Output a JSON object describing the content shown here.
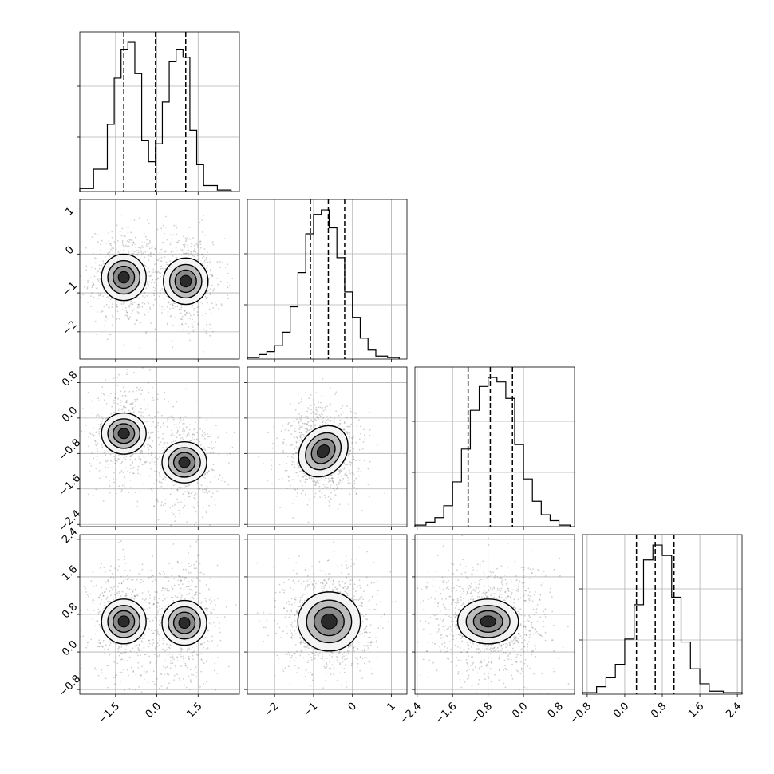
{
  "chart_data": {
    "type": "corner",
    "grid": true,
    "parameters": [
      {
        "range": [
          -2.8,
          3.0
        ],
        "ticks": [
          -1.5,
          0.0,
          1.5
        ],
        "tick_labels": [
          "−1.5",
          "0.0",
          "1.5"
        ]
      },
      {
        "range": [
          -2.7,
          1.4
        ],
        "ticks": [
          -2,
          -1,
          0,
          1
        ],
        "tick_labels": [
          "−2",
          "−1",
          "0",
          "1"
        ]
      },
      {
        "range": [
          -2.45,
          1.15
        ],
        "ticks": [
          -2.4,
          -1.6,
          -0.8,
          0.0,
          0.8
        ],
        "tick_labels": [
          "−2.4",
          "−1.6",
          "−0.8",
          "0.0",
          "0.8"
        ]
      },
      {
        "range": [
          -0.9,
          2.5
        ],
        "ticks": [
          -0.8,
          0.0,
          0.8,
          1.6,
          2.4
        ],
        "tick_labels": [
          "−0.8",
          "0.0",
          "0.8",
          "1.6",
          "2.4"
        ]
      }
    ],
    "histograms": [
      {
        "parameter": 0,
        "bin_edges": [
          -2.8,
          -2.3,
          -1.8,
          -1.55,
          -1.3,
          -1.05,
          -0.8,
          -0.55,
          -0.3,
          -0.05,
          0.2,
          0.45,
          0.7,
          0.95,
          1.2,
          1.45,
          1.7,
          2.2,
          2.7
        ],
        "counts": [
          0.02,
          0.15,
          0.45,
          0.76,
          0.95,
          1.0,
          0.79,
          0.34,
          0.2,
          0.32,
          0.6,
          0.87,
          0.95,
          0.9,
          0.41,
          0.18,
          0.04,
          0.01
        ],
        "quantiles": [
          -1.2,
          -0.05,
          1.05
        ]
      },
      {
        "parameter": 1,
        "bin_edges": [
          -2.7,
          -2.4,
          -2.2,
          -2.0,
          -1.8,
          -1.6,
          -1.4,
          -1.2,
          -1.0,
          -0.8,
          -0.6,
          -0.4,
          -0.2,
          0.0,
          0.2,
          0.4,
          0.6,
          0.9,
          1.2
        ],
        "counts": [
          0.01,
          0.03,
          0.05,
          0.09,
          0.18,
          0.35,
          0.58,
          0.84,
          0.97,
          1.0,
          0.88,
          0.68,
          0.45,
          0.28,
          0.14,
          0.06,
          0.02,
          0.01
        ],
        "quantiles": [
          -1.08,
          -0.62,
          -0.2
        ]
      },
      {
        "parameter": 2,
        "bin_edges": [
          -2.45,
          -2.2,
          -2.0,
          -1.8,
          -1.6,
          -1.4,
          -1.2,
          -1.0,
          -0.8,
          -0.6,
          -0.4,
          -0.2,
          0.0,
          0.2,
          0.4,
          0.6,
          0.8,
          1.05
        ],
        "counts": [
          0.01,
          0.03,
          0.06,
          0.14,
          0.3,
          0.52,
          0.78,
          0.94,
          1.0,
          0.97,
          0.86,
          0.55,
          0.32,
          0.17,
          0.08,
          0.04,
          0.01
        ],
        "quantiles": [
          -1.25,
          -0.75,
          -0.25
        ]
      },
      {
        "parameter": 3,
        "bin_edges": [
          -0.9,
          -0.6,
          -0.4,
          -0.2,
          0.0,
          0.2,
          0.4,
          0.6,
          0.8,
          1.0,
          1.2,
          1.4,
          1.6,
          1.8,
          2.1,
          2.5
        ],
        "counts": [
          0.01,
          0.05,
          0.11,
          0.2,
          0.37,
          0.6,
          0.9,
          1.0,
          0.93,
          0.65,
          0.35,
          0.17,
          0.07,
          0.02,
          0.01
        ],
        "quantiles": [
          0.25,
          0.65,
          1.05
        ]
      }
    ],
    "joint": [
      {
        "x": 0,
        "y": 1,
        "peaks": [
          {
            "center": [
              -1.2,
              -0.6
            ],
            "sigma": [
              0.55,
              0.55
            ]
          },
          {
            "center": [
              1.05,
              -0.7
            ],
            "sigma": [
              0.6,
              0.6
            ]
          }
        ],
        "scale": [
          0.5,
          0.52
        ]
      },
      {
        "x": 0,
        "y": 2,
        "peaks": [
          {
            "center": [
              -1.2,
              -0.35
            ],
            "sigma": [
              0.55,
              0.5
            ]
          },
          {
            "center": [
              1.0,
              -1.0
            ],
            "sigma": [
              0.55,
              0.5
            ]
          }
        ],
        "scale": [
          0.5,
          0.46
        ]
      },
      {
        "x": 1,
        "y": 2,
        "peaks": [
          {
            "center": [
              -0.75,
              -0.75
            ],
            "sigma": [
              0.55,
              0.55
            ]
          }
        ],
        "scale": [
          0.62,
          0.5
        ],
        "tilt_deg": 50
      },
      {
        "x": 0,
        "y": 3,
        "peaks": [
          {
            "center": [
              -1.2,
              0.65
            ],
            "sigma": [
              0.55,
              0.55
            ]
          },
          {
            "center": [
              1.0,
              0.62
            ],
            "sigma": [
              0.55,
              0.6
            ]
          }
        ],
        "scale": [
          0.5,
          0.5
        ]
      },
      {
        "x": 1,
        "y": 3,
        "peaks": [
          {
            "center": [
              -0.6,
              0.65
            ],
            "sigma": [
              0.5,
              0.5
            ]
          }
        ],
        "scale": [
          0.7,
          0.66
        ]
      },
      {
        "x": 2,
        "y": 3,
        "peaks": [
          {
            "center": [
              -0.8,
              0.65
            ],
            "sigma": [
              0.6,
              0.55
            ]
          }
        ],
        "scale": [
          0.68,
          0.5
        ]
      }
    ]
  }
}
